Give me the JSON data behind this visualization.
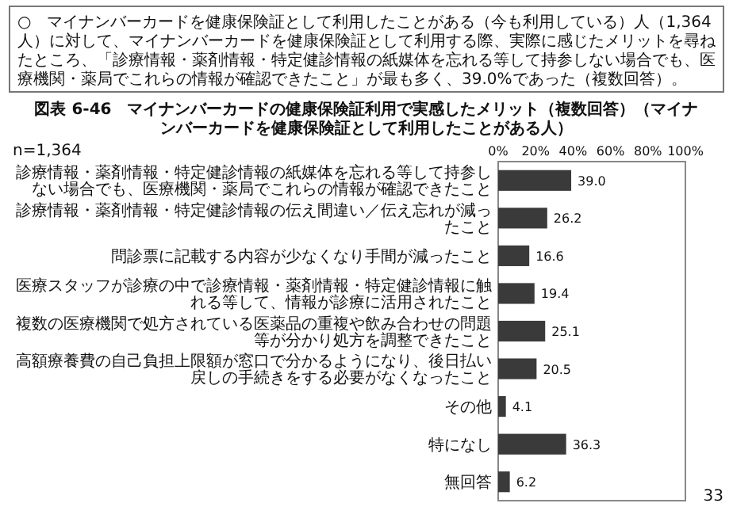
{
  "chart_data": {
    "type": "bar",
    "orientation": "horizontal",
    "title": "図表 6-46　マイナンバーカードの健康保険証利用で実感したメリット（複数回答）（マイナンバーカードを健康保険証として利用したことがある人）",
    "categories": [
      "診療情報・薬剤情報・特定健診情報の紙媒体を忘れる等して持参しない場合でも、医療機関・薬局でこれらの情報が確認できたこと",
      "診療情報・薬剤情報・特定健診情報の伝え間違い／伝え忘れが減ったこと",
      "問診票に記載する内容が少なくなり手間が減ったこと",
      "医療スタッフが診療の中で診療情報・薬剤情報・特定健診情報に触れる等して、情報が診療に活用されたこと",
      "複数の医療機関で処方されている医薬品の重複や飲み合わせの問題等が分かり処方を調整できたこと",
      "高額療養費の自己負担上限額が窓口で分かるようになり、後日払い戻しの手続きをする必要がなくなったこと",
      "その他",
      "特になし",
      "無回答"
    ],
    "values": [
      39.0,
      26.2,
      16.6,
      19.4,
      25.1,
      20.5,
      4.1,
      36.3,
      6.2
    ],
    "value_labels": [
      "39.0",
      "26.2",
      "16.6",
      "19.4",
      "25.1",
      "20.5",
      "4.1",
      "36.3",
      "6.2"
    ],
    "color": "#3a3a3a",
    "xlim": [
      0,
      100
    ],
    "xticks": [
      {
        "value": 0,
        "label": "0%"
      },
      {
        "value": 20,
        "label": "20%"
      },
      {
        "value": 40,
        "label": "40%"
      },
      {
        "value": 60,
        "label": "60%"
      },
      {
        "value": 80,
        "label": "80%"
      },
      {
        "value": 100,
        "label": "100%"
      }
    ],
    "annotations": [
      "○　マイナンバーカードを健康保険証として利用したことがある（今も利用している）人（1,364人）に対して、マイナンバーカードを健康保険証として利用する際、実際に感じたメリットを尋ねたところ、「診療情報・薬剤情報・特定健診情報の紙媒体を忘れる等して持参しない場合でも、医療機関・薬局でこれらの情報が確認できたこと」が最も多く、39.0%であった（複数回答）。",
      "n=1,364",
      "33"
    ]
  }
}
